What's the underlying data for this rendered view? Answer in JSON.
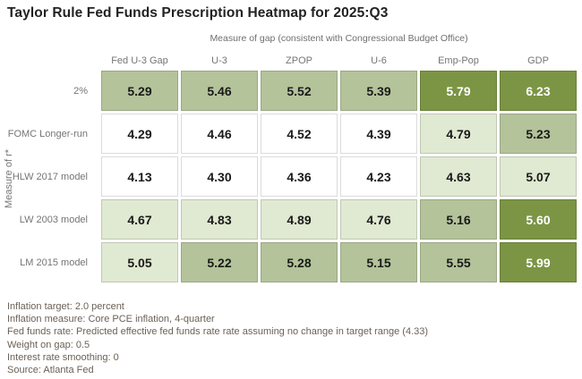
{
  "title": "Taylor Rule Fed Funds Prescription Heatmap for 2025:Q3",
  "chart_data": {
    "type": "heatmap",
    "title": "Taylor Rule Fed Funds Prescription Heatmap for 2025:Q3",
    "x_axis_label": "Measure of gap (consistent with Congressional Budget Office)",
    "y_axis_label": "Measure of r*",
    "columns": [
      "Fed U-3 Gap",
      "U-3",
      "ZPOP",
      "U-6",
      "Emp-Pop",
      "GDP"
    ],
    "rows": [
      "2%",
      "FOMC Longer-run",
      "HLW 2017 model",
      "LW 2003 model",
      "LM 2015 model"
    ],
    "values": [
      [
        5.29,
        5.46,
        5.52,
        5.39,
        5.79,
        6.23
      ],
      [
        4.29,
        4.46,
        4.52,
        4.39,
        4.79,
        5.23
      ],
      [
        4.13,
        4.3,
        4.36,
        4.23,
        4.63,
        5.07
      ],
      [
        4.67,
        4.83,
        4.89,
        4.76,
        5.16,
        5.6
      ],
      [
        5.05,
        5.22,
        5.28,
        5.15,
        5.55,
        5.99
      ]
    ],
    "value_range": [
      4.13,
      6.23
    ],
    "legend_position": "none",
    "grid": false,
    "color_scale": {
      "thresholds": [
        4.58,
        5.08,
        5.58
      ],
      "colors": [
        "#ffffff",
        "#e0e9d1",
        "#b4c39a",
        "#7b9544"
      ],
      "text_colors": [
        "#1a1a1a",
        "#1a1a1a",
        "#1a1a1a",
        "#ffffff"
      ]
    }
  },
  "notes": [
    "Inflation target: 2.0 percent",
    "Inflation measure: Core PCE inflation, 4-quarter",
    "Fed funds rate: Predicted effective fed funds rate rate assuming no change in target range (4.33)",
    "Weight on gap: 0.5",
    "Interest rate smoothing: 0",
    "Source: Atlanta Fed"
  ]
}
